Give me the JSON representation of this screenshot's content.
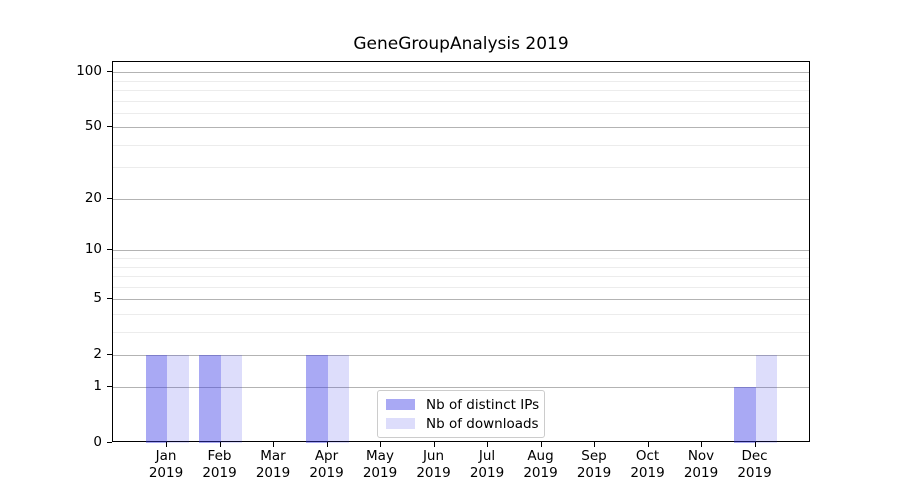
{
  "figure": {
    "background": "#ffffff",
    "title": "GeneGroupAnalysis 2019"
  },
  "chart_data": {
    "type": "bar",
    "title": "GeneGroupAnalysis 2019",
    "x_axis": {
      "categories": [
        {
          "month": "Jan",
          "year": "2019"
        },
        {
          "month": "Feb",
          "year": "2019"
        },
        {
          "month": "Mar",
          "year": "2019"
        },
        {
          "month": "Apr",
          "year": "2019"
        },
        {
          "month": "May",
          "year": "2019"
        },
        {
          "month": "Jun",
          "year": "2019"
        },
        {
          "month": "Jul",
          "year": "2019"
        },
        {
          "month": "Aug",
          "year": "2019"
        },
        {
          "month": "Sep",
          "year": "2019"
        },
        {
          "month": "Oct",
          "year": "2019"
        },
        {
          "month": "Nov",
          "year": "2019"
        },
        {
          "month": "Dec",
          "year": "2019"
        }
      ]
    },
    "y_axis": {
      "scale": "log1p",
      "major_ticks": [
        0,
        1,
        2,
        5,
        10,
        20,
        50,
        100
      ],
      "minor_ticks": [
        3,
        4,
        6,
        7,
        8,
        9,
        30,
        40,
        60,
        70,
        80,
        90
      ],
      "range": [
        0,
        114
      ]
    },
    "series": [
      {
        "name": "Nb of distinct IPs",
        "paint": "rgba(55,55,230,0.43)",
        "effective_color": "#a9a9f3",
        "values": [
          2,
          2,
          0,
          2,
          0,
          0,
          0,
          0,
          0,
          0,
          0,
          1
        ]
      },
      {
        "name": "Nb of downloads",
        "paint": "rgba(55,55,230,0.17)",
        "effective_color": "#dcdcf8",
        "values": [
          2,
          2,
          0,
          2,
          0,
          0,
          0,
          0,
          0,
          0,
          0,
          2
        ]
      }
    ],
    "grid": {
      "orientation": "horizontal",
      "major_color": "#b3b3b3",
      "minor_color": "#ececec"
    },
    "legend": {
      "position": "lower center inside",
      "border_color": "#cccccc"
    },
    "spine_color": "#000000",
    "text_color": "#000000"
  }
}
